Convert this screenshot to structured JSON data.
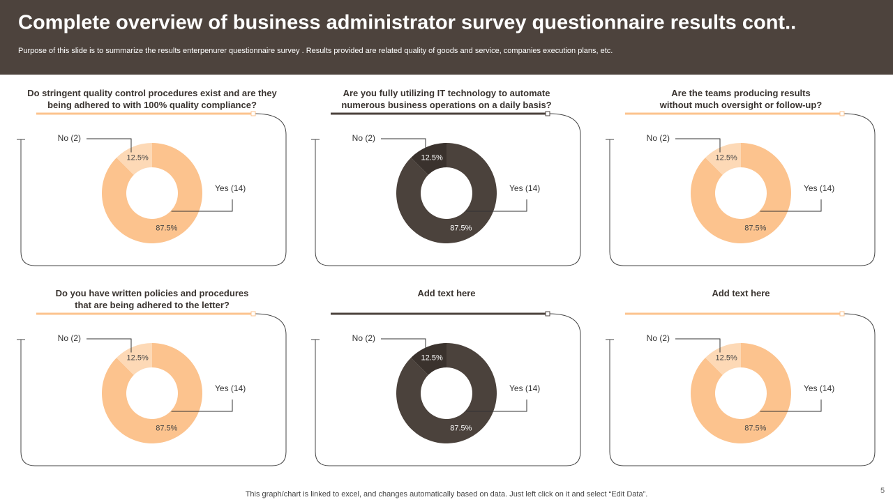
{
  "title": "Complete overview of business administrator survey questionnaire results cont..",
  "subtitle": "Purpose of this slide is to summarize the results  enterpenurer questionnaire survey . Results provided are related quality of goods and service, companies execution plans, etc.",
  "footer": "This graph/chart is linked to excel,  and changes automatically based on data. Just left click on it and select “Edit Data”.",
  "page_number": "5",
  "chart_data": [
    {
      "type": "donut",
      "title": "Do stringent quality control procedures exist and are they\nbeing adhered to with 100% quality compliance?",
      "categories": [
        "Yes (14)",
        "No (2)"
      ],
      "values": [
        87.5,
        12.5
      ],
      "value_labels": [
        "87.5%",
        "12.5%"
      ],
      "colors": [
        "#fcc38e",
        "#fdd9b6"
      ]
    },
    {
      "type": "donut",
      "title": "Are you fully utilizing IT technology to automate\nnumerous business operations on a daily basis?",
      "categories": [
        "Yes (14)",
        "No (2)"
      ],
      "values": [
        87.5,
        12.5
      ],
      "value_labels": [
        "87.5%",
        "12.5%"
      ],
      "colors": [
        "#4b423c",
        "#3a322d"
      ]
    },
    {
      "type": "donut",
      "title": "Are the teams producing results\nwithout much oversight or follow-up?",
      "categories": [
        "Yes (14)",
        "No (2)"
      ],
      "values": [
        87.5,
        12.5
      ],
      "value_labels": [
        "87.5%",
        "12.5%"
      ],
      "colors": [
        "#fcc38e",
        "#fdd9b6"
      ]
    },
    {
      "type": "donut",
      "title": "Do you have written policies and procedures\nthat are being adhered to the letter?",
      "categories": [
        "Yes (14)",
        "No (2)"
      ],
      "values": [
        87.5,
        12.5
      ],
      "value_labels": [
        "87.5%",
        "12.5%"
      ],
      "colors": [
        "#fcc38e",
        "#fdd9b6"
      ]
    },
    {
      "type": "donut",
      "title": "Add text here",
      "categories": [
        "Yes (14)",
        "No (2)"
      ],
      "values": [
        87.5,
        12.5
      ],
      "value_labels": [
        "87.5%",
        "12.5%"
      ],
      "colors": [
        "#4b423c",
        "#3a322d"
      ]
    },
    {
      "type": "donut",
      "title": "Add text here",
      "categories": [
        "Yes (14)",
        "No (2)"
      ],
      "values": [
        87.5,
        12.5
      ],
      "value_labels": [
        "87.5%",
        "12.5%"
      ],
      "colors": [
        "#fcc38e",
        "#fdd9b6"
      ]
    }
  ]
}
